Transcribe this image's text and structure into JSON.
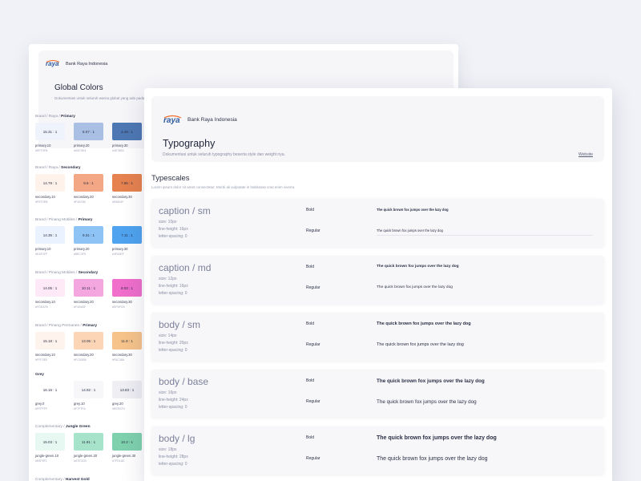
{
  "brand": {
    "logo_text": "raya",
    "name": "Bank Raya Indonesia",
    "logo_blue": "#2c5aa0",
    "logo_orange": "#f26b2a"
  },
  "colors_page": {
    "title": "Global Colors",
    "description": "Dokumentasi untuk seluruh warna global yang ada pada B",
    "sections": [
      {
        "prefix": "Brand / Raya / ",
        "label": "Primary",
        "swatches": [
          {
            "ratio": "15.31 : 1",
            "name": "primary.10",
            "hex": "#EFF3FB",
            "color": "#eff3fb"
          },
          {
            "ratio": "8.07 : 1",
            "name": "primary.20",
            "hex": "#A9C0E4",
            "color": "#a9c0e4"
          },
          {
            "ratio": "4.49 : 1",
            "name": "primary.30",
            "hex": "#4E78B3",
            "color": "#4e78b3"
          }
        ]
      },
      {
        "prefix": "Brand / Raya / ",
        "label": "Secondary",
        "swatches": [
          {
            "ratio": "14.79 : 1",
            "name": "secondary.10",
            "hex": "#FEF2EB",
            "color": "#fef2eb"
          },
          {
            "ratio": "9.6 : 1",
            "name": "secondary.20",
            "hex": "#F4A785",
            "color": "#f4a785"
          },
          {
            "ratio": "7.65 : 1",
            "name": "secondary.30",
            "hex": "#E6824F",
            "color": "#e6824f"
          }
        ]
      },
      {
        "prefix": "Brand / Pinang Mobiles / ",
        "label": "Primary",
        "swatches": [
          {
            "ratio": "14.35 : 1",
            "name": "primary.10",
            "hex": "#EAF1FF",
            "color": "#eaf1ff"
          },
          {
            "ratio": "9.31 : 1",
            "name": "primary.20",
            "hex": "#8EC3F5",
            "color": "#8ec3f5"
          },
          {
            "ratio": "7.11 : 1",
            "name": "primary.30",
            "hex": "#4FA3EF",
            "color": "#4fa3ef"
          }
        ]
      },
      {
        "prefix": "Brand / Pinang Mobiles / ",
        "label": "Secondary",
        "swatches": [
          {
            "ratio": "14.05 : 1",
            "name": "secondary.10",
            "hex": "#FDEAF6",
            "color": "#fdeaf6"
          },
          {
            "ratio": "10.11 : 1",
            "name": "secondary.20",
            "hex": "#F4A6DF",
            "color": "#f4a6df"
          },
          {
            "ratio": "8.03 : 1",
            "name": "secondary.30",
            "hex": "#EF6FCB",
            "color": "#ef6fcb"
          }
        ]
      },
      {
        "prefix": "Brand / Pinang Permanen / ",
        "label": "Primary",
        "swatches": [
          {
            "ratio": "15.18 : 1",
            "name": "secondary.10",
            "hex": "#FFF3EE",
            "color": "#fff3ee"
          },
          {
            "ratio": "13.05 : 1",
            "name": "secondary.20",
            "hex": "#FCD5B6",
            "color": "#fcd5b6"
          },
          {
            "ratio": "11.8 : 1",
            "name": "secondary.30",
            "hex": "#F6C38A",
            "color": "#f6c38a"
          }
        ]
      },
      {
        "prefix": "",
        "label": "Grey",
        "swatches": [
          {
            "ratio": "16.16 : 1",
            "name": "grey.0",
            "hex": "#FFFFFF",
            "color": "#ffffff"
          },
          {
            "ratio": "14.92 : 1",
            "name": "grey.10",
            "hex": "#F7F7FA",
            "color": "#f7f7fa"
          },
          {
            "ratio": "13.83 : 1",
            "name": "grey.20",
            "hex": "#EEEEF3",
            "color": "#eeeef3"
          }
        ]
      },
      {
        "prefix": "Complementary / ",
        "label": "Jungle Green",
        "swatches": [
          {
            "ratio": "15.03 : 1",
            "name": "jungle-green.10",
            "hex": "#E6F8F1",
            "color": "#e6f8f1"
          },
          {
            "ratio": "11.91 : 1",
            "name": "jungle-green.20",
            "hex": "#A7E3CB",
            "color": "#a7e3cb"
          },
          {
            "ratio": "10.2 : 1",
            "name": "jungle-green.30",
            "hex": "#7FD1AE",
            "color": "#7fd1ae"
          }
        ]
      },
      {
        "prefix": "Complementary / ",
        "label": "Harvest Gold",
        "swatches": []
      }
    ]
  },
  "typography_page": {
    "title": "Typography",
    "description": "Dokumentasi untuk seluruh typography beserta style dan weight nya.",
    "link": "Website",
    "section_title": "Typescales",
    "section_desc": "Lorem ipsum dolor sit amet consectetur. Morbi ali vulputate in habitasse cras enim viverra",
    "rows": [
      {
        "name": "caption / sm",
        "size": "size: 10px",
        "line_height": "line-height: 16px",
        "letter_spacing": "letter-spacing: 0",
        "bold": "Bold",
        "regular": "Regular",
        "sample": "The quick brown fox jumps over the lazy dog"
      },
      {
        "name": "caption / md",
        "size": "size: 12px",
        "line_height": "line-height: 16px",
        "letter_spacing": "letter-spacing: 0",
        "bold": "Bold",
        "regular": "Regular",
        "sample": "The quick brown fox jumps over the lazy dog"
      },
      {
        "name": "body / sm",
        "size": "size: 14px",
        "line_height": "line-height: 20px",
        "letter_spacing": "letter-spacing: 0",
        "bold": "Bold",
        "regular": "Regular",
        "sample": "The quick brown fox jumps over the lazy dog"
      },
      {
        "name": "body / base",
        "size": "size: 16px",
        "line_height": "line-height: 24px",
        "letter_spacing": "letter-spacing: 0",
        "bold": "Bold",
        "regular": "Regular",
        "sample": "The quick brown fox jumps over the lazy dog"
      },
      {
        "name": "body / lg",
        "size": "size: 18px",
        "line_height": "line-height: 28px",
        "letter_spacing": "letter-spacing: 0",
        "bold": "Bold",
        "regular": "Regular",
        "sample": "The quick brown fox jumps over the lazy dog"
      }
    ]
  }
}
